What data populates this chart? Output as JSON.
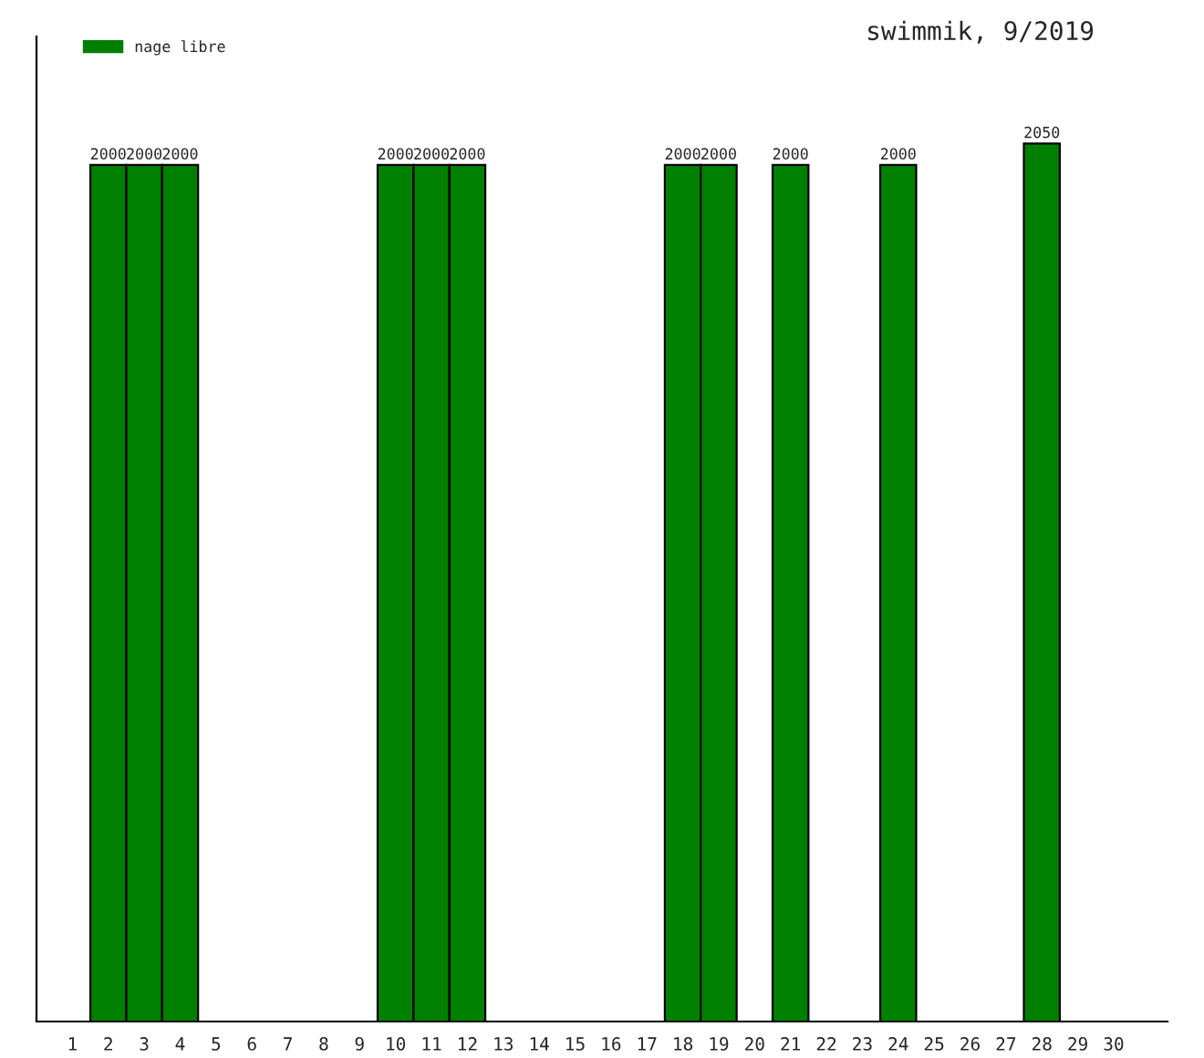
{
  "chart_data": {
    "type": "bar",
    "title": "swimmik, 9/2019",
    "categories": [
      "1",
      "2",
      "3",
      "4",
      "5",
      "6",
      "7",
      "8",
      "9",
      "10",
      "11",
      "12",
      "13",
      "14",
      "15",
      "16",
      "17",
      "18",
      "19",
      "20",
      "21",
      "22",
      "23",
      "24",
      "25",
      "26",
      "27",
      "28",
      "29",
      "30"
    ],
    "series": [
      {
        "name": "nage libre",
        "color": "#008000",
        "values": [
          null,
          2000,
          2000,
          2000,
          null,
          null,
          null,
          null,
          null,
          2000,
          2000,
          2000,
          null,
          null,
          null,
          null,
          null,
          2000,
          2000,
          null,
          2000,
          null,
          null,
          2000,
          null,
          null,
          null,
          2050,
          null,
          null
        ]
      }
    ],
    "ylim": [
      0,
      2300
    ],
    "tick_labels": "x",
    "data_labels": true,
    "legend": "top left",
    "grid": false
  }
}
